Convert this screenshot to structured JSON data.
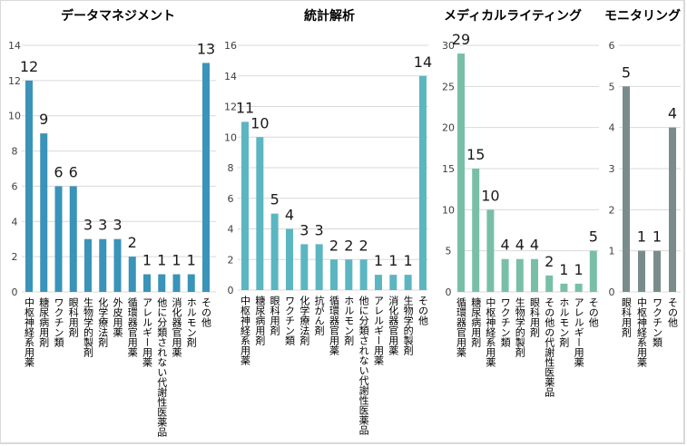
{
  "chart_data": [
    {
      "type": "bar",
      "title": "データマネジメント",
      "color": "#3a93b8",
      "ylim": [
        0,
        14
      ],
      "yticks": [
        0,
        2,
        4,
        6,
        8,
        10,
        12,
        14
      ],
      "grid": true,
      "categories": [
        "中枢神経系用薬",
        "糖尿病用剤",
        "ワクチン類",
        "眼科用剤",
        "生物学的製剤",
        "化学療法剤",
        "外皮用薬",
        "循環器官用薬",
        "アレルギー用薬",
        "他に分類されない代謝性医薬品",
        "消化器官用薬",
        "ホルモン剤",
        "その他"
      ],
      "values": [
        12,
        9,
        6,
        6,
        3,
        3,
        3,
        2,
        1,
        1,
        1,
        1,
        13
      ]
    },
    {
      "type": "bar",
      "title": "統計解析",
      "color": "#5bb6c1",
      "ylim": [
        0,
        16
      ],
      "yticks": [
        0,
        2,
        4,
        6,
        8,
        10,
        12,
        14,
        16
      ],
      "grid": true,
      "categories": [
        "中枢神経系用薬",
        "糖尿病用剤",
        "眼科用剤",
        "ワクチン類",
        "化学療法剤",
        "抗がん剤",
        "循環器官用薬",
        "ホルモン剤",
        "他に分類されない代謝性医薬品",
        "アレルギー用薬",
        "消化器官用薬",
        "生物学的製剤",
        "その他"
      ],
      "values": [
        11,
        10,
        5,
        4,
        3,
        3,
        2,
        2,
        2,
        1,
        1,
        1,
        14
      ]
    },
    {
      "type": "bar",
      "title": "メディカルライティング",
      "color": "#79bfa8",
      "ylim": [
        0,
        30
      ],
      "yticks": [
        0,
        5,
        10,
        15,
        20,
        25,
        30
      ],
      "grid": true,
      "categories": [
        "循環器官用薬",
        "糖尿病用剤",
        "中枢神経系用薬",
        "ワクチン類",
        "生物学的製剤",
        "眼科用剤",
        "その他の代謝性医薬品",
        "ホルモン剤",
        "アレルギー用薬",
        "その他"
      ],
      "values": [
        29,
        15,
        10,
        4,
        4,
        4,
        2,
        1,
        1,
        5
      ]
    },
    {
      "type": "bar",
      "title": "モニタリング",
      "color": "#7a8b8c",
      "ylim": [
        0,
        6
      ],
      "yticks": [
        0,
        1,
        2,
        3,
        4,
        5,
        6
      ],
      "grid": true,
      "categories": [
        "眼科用剤",
        "中枢神経系用薬",
        "ワクチン類",
        "その他"
      ],
      "values": [
        5,
        1,
        1,
        4
      ]
    }
  ]
}
